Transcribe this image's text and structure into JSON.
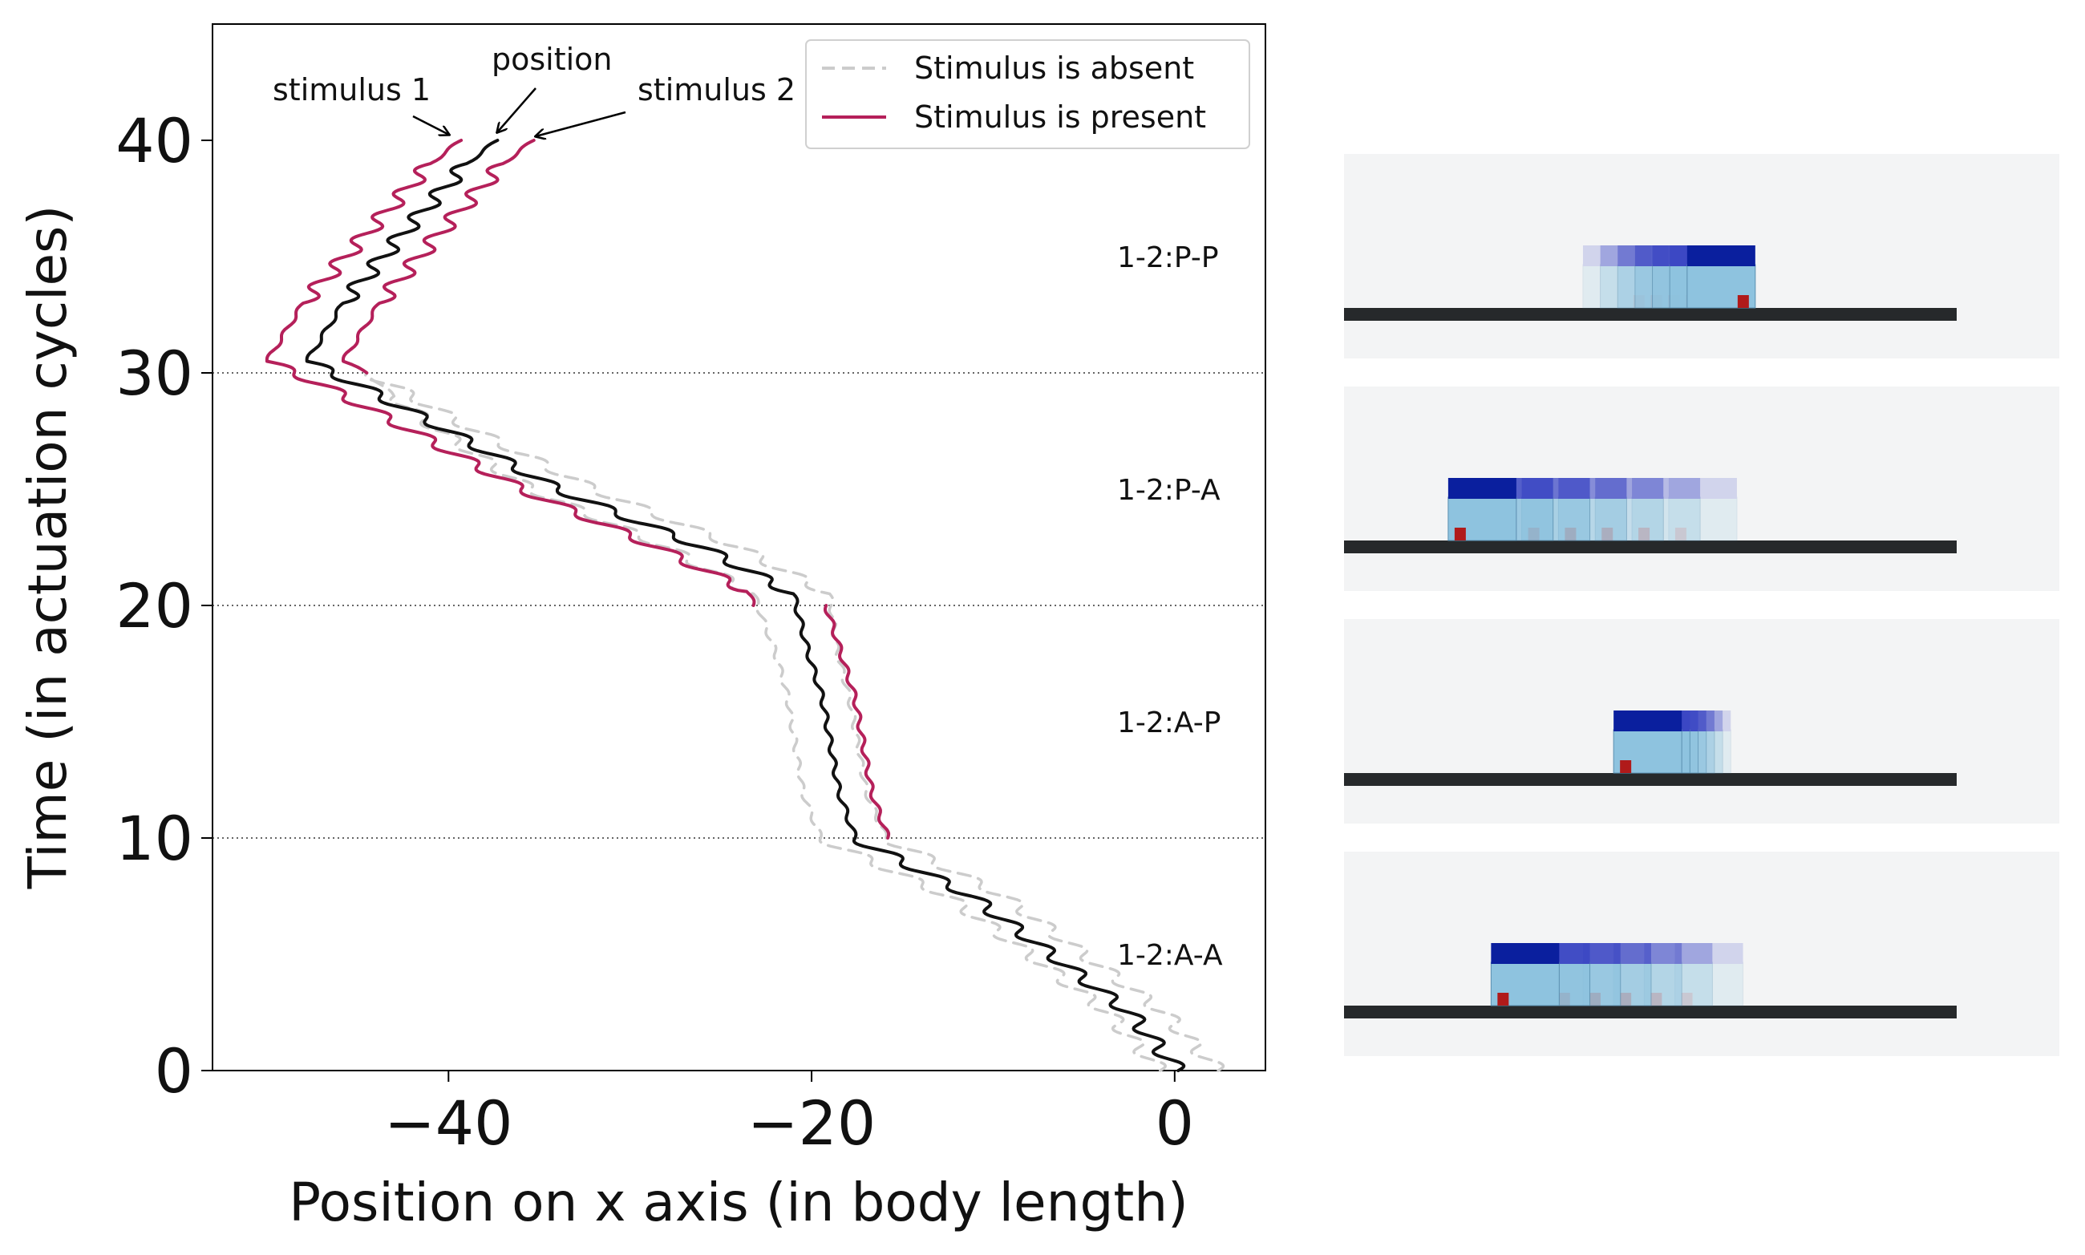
{
  "chart_data": {
    "type": "line",
    "xlabel": "Position on x axis (in body length)",
    "ylabel": "Time (in actuation cycles)",
    "xlim": [
      -53,
      5
    ],
    "ylim": [
      0,
      45
    ],
    "xticks": [
      {
        "v": -40,
        "label": "−40"
      },
      {
        "v": -20,
        "label": "−20"
      },
      {
        "v": 0,
        "label": "0"
      }
    ],
    "yticks": [
      {
        "v": 0,
        "label": "0"
      },
      {
        "v": 10,
        "label": "10"
      },
      {
        "v": 20,
        "label": "20"
      },
      {
        "v": 30,
        "label": "30"
      },
      {
        "v": 40,
        "label": "40"
      }
    ],
    "hlines": [
      10,
      20,
      30
    ],
    "colors": {
      "position": "#111111",
      "present": "#b5205a",
      "absent": "#cccccc"
    },
    "legend": {
      "placement": "upper-right",
      "entries": [
        {
          "label": "Stimulus is absent",
          "style": "dashed"
        },
        {
          "label": "Stimulus is present",
          "style": "solid"
        }
      ]
    },
    "annotations": [
      {
        "text": "stimulus 1",
        "target": "stimulus-1-end"
      },
      {
        "text": "position",
        "target": "position-end"
      },
      {
        "text": "stimulus 2",
        "target": "stimulus-2-end"
      }
    ],
    "position_path": [
      {
        "t": 0,
        "x": 0.2
      },
      {
        "t": 2.5,
        "x": -2.5
      },
      {
        "t": 5,
        "x": -6.8
      },
      {
        "t": 7.5,
        "x": -11.2
      },
      {
        "t": 10,
        "x": -17.6
      },
      {
        "t": 12,
        "x": -18.5
      },
      {
        "t": 16,
        "x": -19.4
      },
      {
        "t": 18,
        "x": -20.2
      },
      {
        "t": 20.5,
        "x": -21
      },
      {
        "t": 22.5,
        "x": -26
      },
      {
        "t": 25,
        "x": -34
      },
      {
        "t": 27.5,
        "x": -40
      },
      {
        "t": 29.5,
        "x": -45
      },
      {
        "t": 30.5,
        "x": -47.8
      },
      {
        "t": 33,
        "x": -45.8
      },
      {
        "t": 36,
        "x": -42.5
      },
      {
        "t": 39,
        "x": -39
      },
      {
        "t": 40,
        "x": -37.3
      }
    ],
    "stimulus_1": [
      {
        "t": 0,
        "x": -1.2
      },
      {
        "t": 2.5,
        "x": -4
      },
      {
        "t": 5,
        "x": -8.3
      },
      {
        "t": 7.5,
        "x": -12.7
      },
      {
        "t": 10,
        "x": -19.2
      },
      {
        "t": 20,
        "x": -23.2
      },
      {
        "t": 20.6,
        "x": -23.5
      },
      {
        "t": 22.5,
        "x": -28.5
      },
      {
        "t": 25,
        "x": -36
      },
      {
        "t": 27.5,
        "x": -42
      },
      {
        "t": 29.5,
        "x": -47
      },
      {
        "t": 30.5,
        "x": -50
      },
      {
        "t": 33,
        "x": -48
      },
      {
        "t": 36,
        "x": -44.5
      },
      {
        "t": 39,
        "x": -41
      },
      {
        "t": 40,
        "x": -39.3
      }
    ],
    "stimulus_2": [
      {
        "t": 0,
        "x": 2
      },
      {
        "t": 2.5,
        "x": -0.8
      },
      {
        "t": 5,
        "x": -5.2
      },
      {
        "t": 7.5,
        "x": -9.6
      },
      {
        "t": 10,
        "x": -15.8
      },
      {
        "t": 12,
        "x": -16.7
      },
      {
        "t": 16,
        "x": -17.6
      },
      {
        "t": 18,
        "x": -18.4
      },
      {
        "t": 20,
        "x": -19.2
      },
      {
        "t": 20.7,
        "x": -19.4
      },
      {
        "t": 22.5,
        "x": -24
      },
      {
        "t": 25,
        "x": -32
      },
      {
        "t": 27.5,
        "x": -38
      },
      {
        "t": 29.5,
        "x": -43.5
      },
      {
        "t": 30,
        "x": -44.5
      },
      {
        "t": 30.5,
        "x": -45.8
      },
      {
        "t": 33,
        "x": -43.8
      },
      {
        "t": 36,
        "x": -40.5
      },
      {
        "t": 39,
        "x": -37
      },
      {
        "t": 40,
        "x": -35.3
      }
    ],
    "absent_1": [
      {
        "t": 0,
        "x": -0.8
      },
      {
        "t": 2.5,
        "x": -3.7
      },
      {
        "t": 5,
        "x": -8
      },
      {
        "t": 7.5,
        "x": -12.5
      },
      {
        "t": 10,
        "x": -19.5
      },
      {
        "t": 12,
        "x": -20.5
      },
      {
        "t": 16,
        "x": -21.3
      },
      {
        "t": 18,
        "x": -22
      },
      {
        "t": 20.5,
        "x": -23.2
      },
      {
        "t": 22.5,
        "x": -28
      },
      {
        "t": 25,
        "x": -35.5
      },
      {
        "t": 27.5,
        "x": -40.5
      },
      {
        "t": 29,
        "x": -43
      },
      {
        "t": 30,
        "x": -44.5
      }
    ],
    "absent_2": [
      {
        "t": 0,
        "x": 2.4
      },
      {
        "t": 2.5,
        "x": -0.6
      },
      {
        "t": 5,
        "x": -5
      },
      {
        "t": 7.5,
        "x": -9.4
      },
      {
        "t": 10,
        "x": -15.9
      },
      {
        "t": 12,
        "x": -17
      },
      {
        "t": 16,
        "x": -17.9
      },
      {
        "t": 18,
        "x": -18.6
      },
      {
        "t": 20.5,
        "x": -19
      },
      {
        "t": 22.5,
        "x": -24
      },
      {
        "t": 25,
        "x": -32
      },
      {
        "t": 27.5,
        "x": -38.5
      },
      {
        "t": 29,
        "x": -42
      },
      {
        "t": 30,
        "x": -44.5
      }
    ],
    "panels": [
      {
        "label": "1-2:P-P",
        "time": 35,
        "robot_x": 0.56,
        "spread": 0.17,
        "direction": 1
      },
      {
        "label": "1-2:P-A",
        "time": 25,
        "robot_x": 0.17,
        "spread": 0.36,
        "direction": -1
      },
      {
        "label": "1-2:A-P",
        "time": 15,
        "robot_x": 0.44,
        "spread": 0.08,
        "direction": -1
      },
      {
        "label": "1-2:A-A",
        "time": 5,
        "robot_x": 0.24,
        "spread": 0.3,
        "direction": -1
      }
    ]
  }
}
